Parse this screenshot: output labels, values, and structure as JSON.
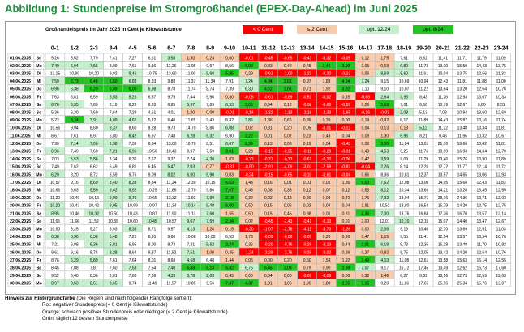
{
  "title": "Abbildung 1: Stundenpreise im Stromgroßhandel (EPEX-Day-Ahead) im Juni 2025",
  "colors": {
    "title": "#1f8a3a",
    "negative": "#ff0000",
    "orange": "#f8cbad",
    "green_light": "#c6efce",
    "green_dark": "#22c422",
    "default": "#ffffff",
    "grid": "#b5b5b5"
  },
  "legend": {
    "negative": "< 0 Cent",
    "orange": "≤ 2 Cent",
    "green_light": "opt. 12/24",
    "green_dark": "opt. 8/24"
  },
  "notes": {
    "heading": "Hinweis zur Hintergrundfarbe",
    "heading_sub": "(Die Regeln sind nach folgender Rangfolge sortiert):",
    "items": [
      "Rot: negativer Stundenpreis (< 0 Cent je Kilowattstunde)",
      "Orange: schwach positiver Stundenpreis oder niedriger (≤ 2 Cent je Kilowattstunde)",
      "Grün: täglich 12 besten Stundenpreise"
    ]
  },
  "chart_data": {
    "type": "heatmap",
    "title": "Abbildung 1: Stundenpreise im Stromgroßhandel (EPEX-Day-Ahead) im Juni 2025",
    "subtitle": "Großhandelspreis im Jahr 2025 in Cent je Kilowattstunde",
    "hours": [
      "0-1",
      "1-2",
      "2-3",
      "3-4",
      "4-5",
      "5-6",
      "6-7",
      "7-8",
      "8-9",
      "9-10",
      "10-11",
      "11-12",
      "12-13",
      "13-14",
      "14-15",
      "15-16",
      "16-17",
      "17-18",
      "18-19",
      "19-20",
      "20-21",
      "21-22",
      "22-23",
      "23-24"
    ],
    "dates": [
      "01.06.2025",
      "02.06.2025",
      "03.06.2025",
      "04.06.2025",
      "05.06.2025",
      "06.06.2025",
      "07.06.2025",
      "08.06.2025",
      "09.06.2025",
      "10.06.2025",
      "11.06.2025",
      "12.06.2025",
      "13.06.2025",
      "14.06.2025",
      "15.06.2025",
      "16.06.2025",
      "17.06.2025",
      "18.06.2025",
      "19.06.2025",
      "20.06.2025",
      "21.06.2025",
      "22.06.2025",
      "23.06.2025",
      "24.06.2025",
      "25.06.2025",
      "26.06.2025",
      "27.06.2025",
      "28.06.2025",
      "29.06.2025",
      "30.06.2025"
    ],
    "weekdays": [
      "So",
      "Mo",
      "Di",
      "Mi",
      "Do",
      "Fr",
      "Sa",
      "So",
      "Mo",
      "Di",
      "Mi",
      "Do",
      "Fr",
      "Sa",
      "So",
      "Mo",
      "Di",
      "Mi",
      "Do",
      "Fr",
      "Sa",
      "So",
      "Mo",
      "Di",
      "Mi",
      "Do",
      "Fr",
      "Sa",
      "So",
      "Mo"
    ],
    "values": [
      [
        9.26,
        8.52,
        7.79,
        7.41,
        7.27,
        6.61,
        3.58,
        1.3,
        0.24,
        0.0,
        -0.01,
        -0.45,
        -0.65,
        -0.41,
        -0.32,
        -0.05,
        0.12,
        1.75,
        7.61,
        8.62,
        11.41,
        11.71,
        11.79,
        11.09
      ],
      [
        7.49,
        6.94,
        7.55,
        8.09,
        7.61,
        9.16,
        11.26,
        11.05,
        9.97,
        8.56,
        6.08,
        0.83,
        0.42,
        0.45,
        2.46,
        3.9,
        1.05,
        0.68,
        6.8,
        11.73,
        13.1,
        15.59,
        14.43,
        13.75
      ],
      [
        13.15,
        10.99,
        10.2,
        9.92,
        9.46,
        10.75,
        13.6,
        11.0,
        8.6,
        5.95,
        0.29,
        -0.61,
        -1.0,
        -1.23,
        -0.3,
        -0.13,
        0.06,
        8.69,
        8.6,
        11.61,
        10.04,
        13.75,
        12.56,
        11.33
      ],
      [
        7.5,
        6.73,
        6.46,
        6.5,
        6.83,
        8.83,
        9.88,
        11.37,
        11.34,
        7.91,
        7.24,
        4.84,
        2.61,
        0.97,
        1.83,
        4.34,
        7.24,
        9.15,
        10.69,
        10.94,
        12.43,
        11.81,
        11.88,
        11.0
      ],
      [
        6.96,
        6.38,
        6.2,
        6.09,
        6.0,
        6.98,
        8.78,
        11.74,
        8.74,
        7.39,
        6.3,
        4.62,
        2.61,
        0.71,
        1.92,
        3.92,
        7.1,
        9.1,
        10.07,
        11.22,
        13.64,
        13.2,
        12.64,
        10.76
      ],
      [
        7.63,
        6.81,
        6.59,
        5.53,
        5.26,
        6.37,
        9.79,
        7.44,
        5.96,
        0.3,
        -0.05,
        -0.61,
        -0.89,
        -0.51,
        -0.02,
        0.15,
        -0.68,
        2.94,
        3.95,
        8.43,
        11.26,
        12.93,
        13.67,
        10.33
      ],
      [
        6.76,
        6.35,
        7.8,
        8.19,
        8.23,
        8.2,
        6.85,
        5.97,
        7.89,
        6.53,
        3.05,
        0.94,
        0.12,
        -0.08,
        -0.6,
        -0.05,
        0.26,
        2.69,
        7.01,
        9.5,
        10.79,
        12.67,
        9.8,
        8.31
      ],
      [
        5.36,
        5.3,
        7.6,
        7.64,
        7.29,
        4.61,
        4.01,
        1.2,
        0.0,
        -0.01,
        -0.14,
        -1.22,
        -2.13,
        -2.18,
        -2.33,
        -1.65,
        -0.16,
        -0.03,
        2.08,
        5.13,
        7.03,
        10.94,
        13.6,
        12.69
      ],
      [
        5.22,
        3.24,
        3.91,
        4.09,
        4.61,
        5.22,
        6.4,
        11.65,
        9.43,
        8.82,
        3.85,
        1.36,
        0.66,
        0.36,
        0.39,
        0.0,
        0.19,
        0.92,
        8.17,
        11.89,
        14.43,
        15.87,
        13.16,
        11.74
      ],
      [
        10.56,
        9.94,
        8.6,
        8.37,
        8.6,
        9.28,
        9.73,
        14.7,
        8.86,
        6.08,
        1.02,
        0.31,
        0.2,
        0.05,
        -0.01,
        -0.12,
        0.04,
        0.13,
        0.18,
        5.12,
        11.22,
        13.48,
        13.34,
        11.81
      ],
      [
        8.67,
        7.61,
        6.97,
        6.8,
        6.42,
        6.97,
        7.48,
        6.28,
        6.32,
        6.9,
        2.22,
        0.01,
        0.02,
        0.23,
        0.43,
        0.04,
        0.09,
        1.3,
        5.96,
        8.21,
        9.46,
        11.95,
        10.32,
        10.67
      ],
      [
        7.3,
        7.14,
        7.06,
        6.98,
        7.36,
        8.34,
        13.0,
        10.7,
        8.51,
        6.67,
        2.3,
        0.13,
        0.06,
        0.19,
        0.04,
        -0.43,
        0.08,
        3.0,
        11.24,
        13.01,
        21.7,
        18.6,
        13.62,
        11.81
      ],
      [
        6.96,
        7.49,
        7.6,
        7.21,
        6.96,
        10.56,
        10.43,
        8.97,
        7.59,
        3.61,
        0.28,
        -0.15,
        -0.95,
        -0.11,
        -0.29,
        -0.01,
        0.43,
        4.53,
        9.25,
        11.76,
        13.99,
        16.93,
        14.34,
        12.7
      ],
      [
        7.03,
        5.53,
        5.86,
        8.34,
        6.36,
        7.67,
        9.37,
        7.74,
        4.2,
        1.03,
        -0.22,
        -0.21,
        -0.33,
        -0.62,
        -0.2,
        -0.06,
        0.47,
        3.59,
        9.09,
        11.29,
        13.46,
        15.76,
        13.9,
        11.89
      ],
      [
        7.49,
        7.62,
        6.62,
        6.49,
        6.81,
        6.45,
        5.47,
        2.03,
        0.77,
        -0.31,
        -0.8,
        -2.91,
        -4.09,
        -3.03,
        -2.58,
        -0.87,
        -0.04,
        2.26,
        8.14,
        12.26,
        12.72,
        11.77,
        12.14,
        11.72
      ],
      [
        6.29,
        8.2,
        8.72,
        8.59,
        9.76,
        9.09,
        8.02,
        6.0,
        5.9,
        0.03,
        -0.24,
        -0.15,
        -0.65,
        -0.1,
        -0.61,
        -0.04,
        0.66,
        8.36,
        10.81,
        12.37,
        13.57,
        14.65,
        13.06,
        12.93
      ],
      [
        10.57,
        9.16,
        8.69,
        8.4,
        8.33,
        8.84,
        11.24,
        12.3,
        10.15,
        6.63,
        1.43,
        0.16,
        0.01,
        0.01,
        0.01,
        1.36,
        6.0,
        7.62,
        12.08,
        13.0,
        14.05,
        15.68,
        12.43,
        11.83
      ],
      [
        10.66,
        9.83,
        9.59,
        9.42,
        9.52,
        10.25,
        11.86,
        12.7,
        9.86,
        7.67,
        0.43,
        0.08,
        0.33,
        0.12,
        0.07,
        0.12,
        0.53,
        8.12,
        10.34,
        13.66,
        14.21,
        13.28,
        13.45,
        12.55
      ],
      [
        11.2,
        10.46,
        10.15,
        9.9,
        9.76,
        10.65,
        13.32,
        11.6,
        7.99,
        2.18,
        0.32,
        0.02,
        0.13,
        0.3,
        0.03,
        0.4,
        1.76,
        7.92,
        13.94,
        15.71,
        28.16,
        24.36,
        13.71,
        13.03
      ],
      [
        10.2,
        10.43,
        10.42,
        9.95,
        10.69,
        10.97,
        11.34,
        10.14,
        8.48,
        6.0,
        0.5,
        0.15,
        0.06,
        0.02,
        0.04,
        0.04,
        1.91,
        10.52,
        13.8,
        16.54,
        15.79,
        14.2,
        13.75,
        12.75
      ],
      [
        8.95,
        10.46,
        10.32,
        10.5,
        10.43,
        10.87,
        11.9,
        11.13,
        7.6,
        1.65,
        0.5,
        0.15,
        0.45,
        0.38,
        0.01,
        0.81,
        4.36,
        7.0,
        13.76,
        16.68,
        17.36,
        16.7,
        13.57,
        12.14
      ],
      [
        11.65,
        11.66,
        11.52,
        10.55,
        10.6,
        10.45,
        10.57,
        9.07,
        7.59,
        2.34,
        0.02,
        -0.45,
        -2.43,
        -0.41,
        -0.13,
        0.01,
        2.0,
        12.01,
        10.1,
        12.15,
        15.07,
        14.4,
        13.47,
        12.67
      ],
      [
        10.9,
        9.25,
        9.27,
        8.93,
        8.38,
        8.71,
        9.57,
        4.13,
        1.26,
        0.15,
        -0.3,
        -1.07,
        -2.78,
        -4.11,
        -3.73,
        -1.26,
        0.0,
        2.06,
        9.19,
        10.4,
        12.7,
        13.69,
        12.51,
        11.03
      ],
      [
        6.38,
        6.36,
        6.38,
        6.48,
        7.25,
        8.95,
        9.6,
        10.08,
        10.0,
        6.53,
        1.73,
        -0.09,
        -0.08,
        -0.05,
        0.2,
        0.3,
        0.47,
        1.15,
        9.55,
        11.41,
        12.54,
        13.57,
        13.54,
        10.76
      ],
      [
        7.21,
        6.88,
        6.36,
        5.81,
        6.95,
        8.0,
        8.73,
        7.31,
        5.62,
        2.24,
        0.36,
        -0.2,
        -0.76,
        -0.29,
        -0.13,
        0.44,
        2.01,
        6.18,
        8.73,
        12.35,
        15.28,
        13.48,
        11.7,
        10.82
      ],
      [
        9.61,
        9.16,
        8.75,
        8.28,
        8.64,
        9.87,
        11.52,
        7.51,
        1.0,
        0.45,
        -1.24,
        -2.29,
        -2.76,
        -0.25,
        -0.02,
        0.26,
        0.27,
        0.92,
        8.75,
        12.05,
        13.42,
        14.2,
        12.64,
        10.76
      ],
      [
        8.76,
        6.29,
        5.89,
        7.61,
        7.64,
        8.01,
        8.68,
        4.68,
        6.48,
        1.44,
        0.05,
        0.0,
        0.2,
        0.5,
        1.54,
        1.92,
        2.49,
        4.03,
        11.08,
        12.61,
        13.58,
        15.63,
        16.14,
        12.55
      ],
      [
        8.45,
        7.88,
        7.87,
        7.6,
        7.53,
        7.54,
        7.4,
        5.88,
        5.13,
        5.82,
        6.75,
        5.45,
        2.03,
        0.79,
        0.9,
        2.99,
        7.07,
        9.17,
        16.72,
        17.45,
        13.49,
        12.62,
        16.73,
        17.6
      ],
      [
        9.52,
        8.4,
        8.36,
        8.01,
        7.6,
        7.36,
        4.35,
        3.78,
        2.03,
        0.43,
        0.0,
        0.04,
        0.0,
        -0.09,
        -0.09,
        0.0,
        0.32,
        1.46,
        6.27,
        9.69,
        13.56,
        12.73,
        12.59,
        12.63
      ],
      [
        8.97,
        8.5,
        8.51,
        8.65,
        9.74,
        11.49,
        11.57,
        10.85,
        9.56,
        7.47,
        4.37,
        1.81,
        1.06,
        1.9,
        1.88,
        2.05,
        5.65,
        9.2,
        11.86,
        17.65,
        25.96,
        25.34,
        15.76,
        13.37
      ]
    ]
  }
}
